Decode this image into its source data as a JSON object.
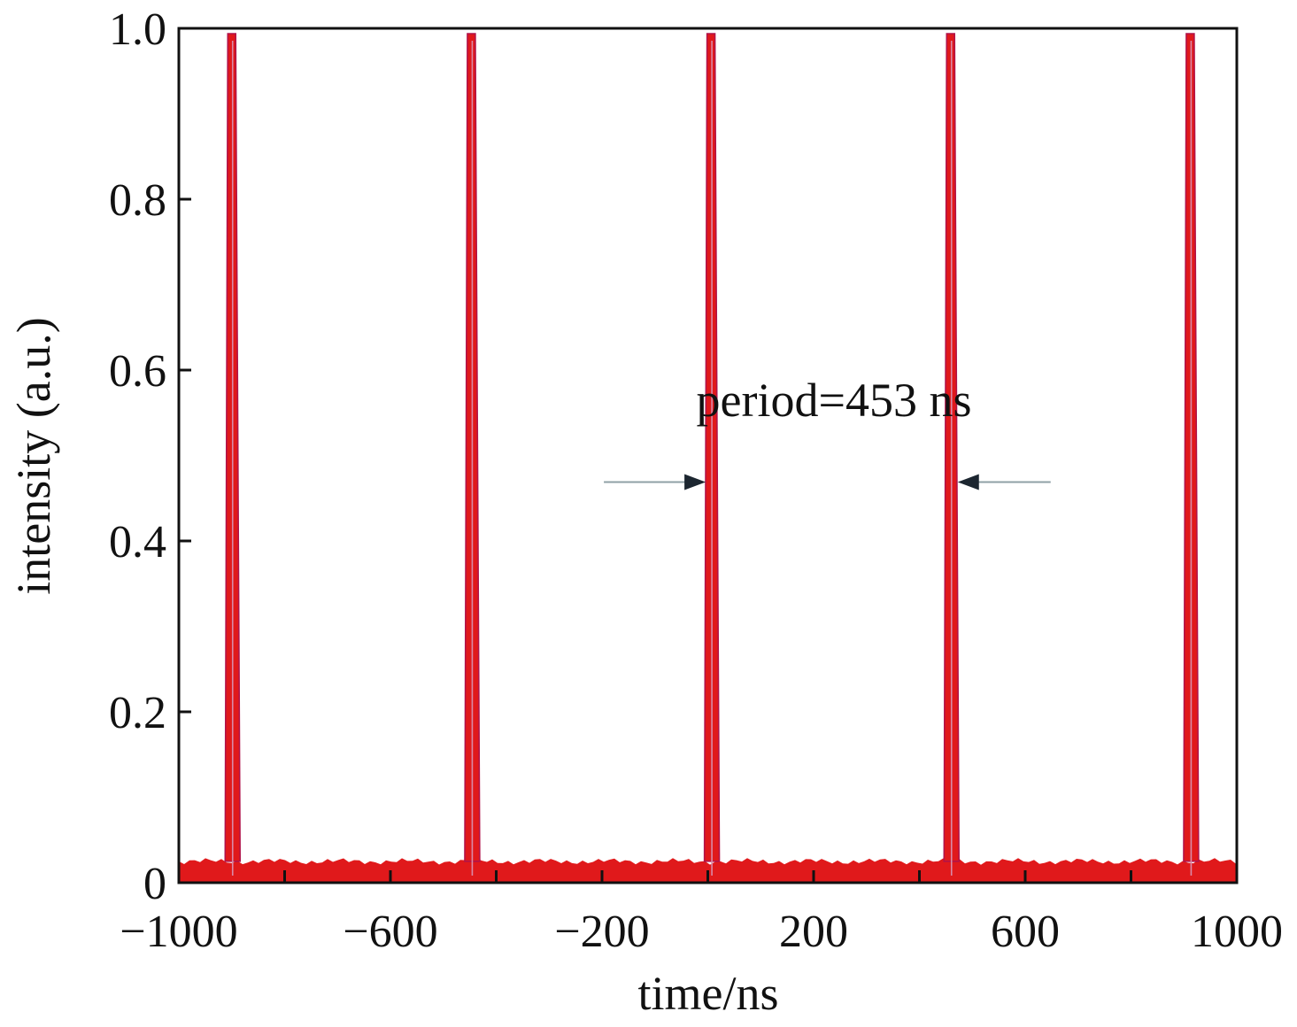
{
  "chart_data": {
    "type": "line",
    "title": "",
    "xlabel": "time/ns",
    "ylabel": "intensity (a.u.)",
    "xlim": [
      -1000,
      1000
    ],
    "ylim": [
      0,
      1.0
    ],
    "x_ticks": [
      -1000,
      -600,
      -200,
      200,
      600,
      1000
    ],
    "x_tick_labels": [
      "−1000",
      "−600",
      "−200",
      "200",
      "600",
      "1000"
    ],
    "x_minor_ticks": [
      -800,
      -400,
      0,
      400,
      800
    ],
    "y_ticks": [
      0,
      0.2,
      0.4,
      0.6,
      0.8,
      1.0
    ],
    "y_tick_labels": [
      "0",
      "0.2",
      "0.4",
      "0.6",
      "0.8",
      "1.0"
    ],
    "grid": false,
    "series": [
      {
        "color": "#e0191b",
        "baseline": 0.025,
        "pulse_peak": 1.0,
        "pulse_centers": [
          -900,
          -447,
          6,
          459,
          912
        ]
      }
    ],
    "annotation": {
      "text": "period=453 ns",
      "y": 0.5,
      "from_x": 6,
      "to_x": 459,
      "arrow_color": "#8fa0a6"
    }
  }
}
